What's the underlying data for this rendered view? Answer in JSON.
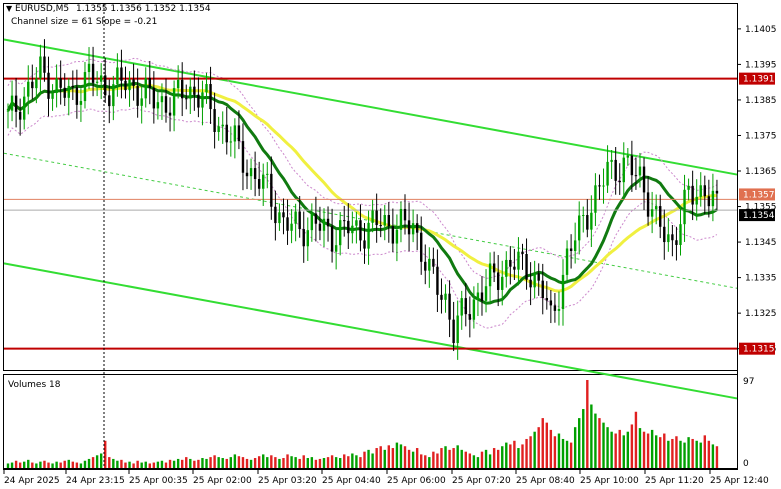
{
  "header": {
    "symbol": "EURUSD,M5",
    "ohlc": "1.1355 1.1356 1.1352 1.1354",
    "channel_info": "Channel size = 61 Slope = -0.21"
  },
  "volume_panel": {
    "label": "Volumes 18",
    "max_label": "97",
    "min_label": "0"
  },
  "colors": {
    "background": "#ffffff",
    "bull_candle": "#00a000",
    "bear_candle": "#000000",
    "channel_lines": "#33dd33",
    "channel_mid": "#44cc44",
    "ma_fast": "#107a10",
    "ma_slow": "#f0f040",
    "envelope": "#cc88cc",
    "level_lines": "#c00000",
    "current_price_line": "#e08060",
    "volume_up": "#00a000",
    "volume_down": "#e02020"
  },
  "price_tags": {
    "upper_level": "1.1391",
    "lower_level": "1.1315",
    "prev_price": "1.1357",
    "current_price": "1.1354"
  },
  "chart_data": [
    {
      "type": "candlestick",
      "title": "EURUSD,M5",
      "ylim": [
        1.1309,
        1.1412
      ],
      "y_ticks": [
        "1.1405",
        "1.1395",
        "1.1385",
        "1.1375",
        "1.1365",
        "1.1355",
        "1.1345",
        "1.1335",
        "1.1325",
        "1.1315"
      ],
      "x_ticks": [
        "24 Apr 2025",
        "24 Apr 23:15",
        "25 Apr 00:35",
        "25 Apr 02:00",
        "25 Apr 03:20",
        "25 Apr 04:40",
        "25 Apr 06:00",
        "25 Apr 07:20",
        "25 Apr 08:40",
        "25 Apr 10:00",
        "25 Apr 11:20",
        "25 Apr 12:40"
      ],
      "horizontal_levels": [
        1.1391,
        1.1315
      ],
      "anchors": [
        {
          "i": 0,
          "p": 1.138
        },
        {
          "i": 4,
          "p": 1.1386
        },
        {
          "i": 8,
          "p": 1.1393
        },
        {
          "i": 12,
          "p": 1.1388
        },
        {
          "i": 16,
          "p": 1.1386
        },
        {
          "i": 20,
          "p": 1.1392
        },
        {
          "i": 24,
          "p": 1.1388
        },
        {
          "i": 28,
          "p": 1.139
        },
        {
          "i": 32,
          "p": 1.1388
        },
        {
          "i": 36,
          "p": 1.1385
        },
        {
          "i": 40,
          "p": 1.1384
        },
        {
          "i": 44,
          "p": 1.1388
        },
        {
          "i": 48,
          "p": 1.1386
        },
        {
          "i": 52,
          "p": 1.1378
        },
        {
          "i": 56,
          "p": 1.1373
        },
        {
          "i": 60,
          "p": 1.1364
        },
        {
          "i": 64,
          "p": 1.136
        },
        {
          "i": 68,
          "p": 1.135
        },
        {
          "i": 72,
          "p": 1.1349
        },
        {
          "i": 76,
          "p": 1.135
        },
        {
          "i": 80,
          "p": 1.1347
        },
        {
          "i": 84,
          "p": 1.1349
        },
        {
          "i": 88,
          "p": 1.1348
        },
        {
          "i": 92,
          "p": 1.1351
        },
        {
          "i": 96,
          "p": 1.1349
        },
        {
          "i": 100,
          "p": 1.135
        },
        {
          "i": 104,
          "p": 1.1336
        },
        {
          "i": 108,
          "p": 1.1329
        },
        {
          "i": 110,
          "p": 1.132
        },
        {
          "i": 112,
          "p": 1.1324
        },
        {
          "i": 116,
          "p": 1.133
        },
        {
          "i": 120,
          "p": 1.1335
        },
        {
          "i": 124,
          "p": 1.1339
        },
        {
          "i": 128,
          "p": 1.1338
        },
        {
          "i": 132,
          "p": 1.1331
        },
        {
          "i": 134,
          "p": 1.1323
        },
        {
          "i": 138,
          "p": 1.134
        },
        {
          "i": 142,
          "p": 1.1352
        },
        {
          "i": 146,
          "p": 1.1359
        },
        {
          "i": 148,
          "p": 1.1366
        },
        {
          "i": 152,
          "p": 1.1366
        },
        {
          "i": 156,
          "p": 1.1364
        },
        {
          "i": 160,
          "p": 1.135
        },
        {
          "i": 164,
          "p": 1.1345
        },
        {
          "i": 168,
          "p": 1.1358
        },
        {
          "i": 172,
          "p": 1.136
        },
        {
          "i": 175,
          "p": 1.1354
        }
      ],
      "volume_series": [
        5,
        6,
        8,
        6,
        7,
        9,
        6,
        5,
        7,
        8,
        6,
        5,
        7,
        6,
        8,
        9,
        7,
        6,
        5,
        8,
        10,
        12,
        14,
        16,
        30,
        12,
        10,
        8,
        9,
        6,
        7,
        5,
        8,
        6,
        7,
        5,
        6,
        7,
        8,
        6,
        9,
        8,
        10,
        9,
        12,
        10,
        8,
        9,
        11,
        10,
        12,
        14,
        12,
        11,
        10,
        12,
        15,
        13,
        12,
        10,
        9,
        11,
        13,
        15,
        12,
        14,
        12,
        10,
        11,
        15,
        13,
        12,
        10,
        14,
        11,
        12,
        9,
        10,
        11,
        12,
        14,
        12,
        11,
        15,
        13,
        16,
        14,
        12,
        18,
        20,
        16,
        22,
        24,
        20,
        25,
        22,
        28,
        26,
        24,
        20,
        18,
        22,
        15,
        14,
        12,
        18,
        16,
        22,
        24,
        20,
        22,
        25,
        20,
        18,
        16,
        14,
        12,
        18,
        20,
        15,
        22,
        20,
        24,
        28,
        26,
        30,
        22,
        26,
        32,
        35,
        40,
        45,
        55,
        50,
        42,
        35,
        38,
        32,
        30,
        28,
        45,
        55,
        65,
        97,
        70,
        60,
        55,
        50,
        45,
        40,
        38,
        42,
        36,
        40,
        48,
        62,
        44,
        40,
        38,
        42,
        36,
        34,
        38,
        30,
        32,
        35,
        30,
        28,
        34,
        32,
        30,
        28,
        36,
        30,
        26,
        24
      ]
    }
  ]
}
